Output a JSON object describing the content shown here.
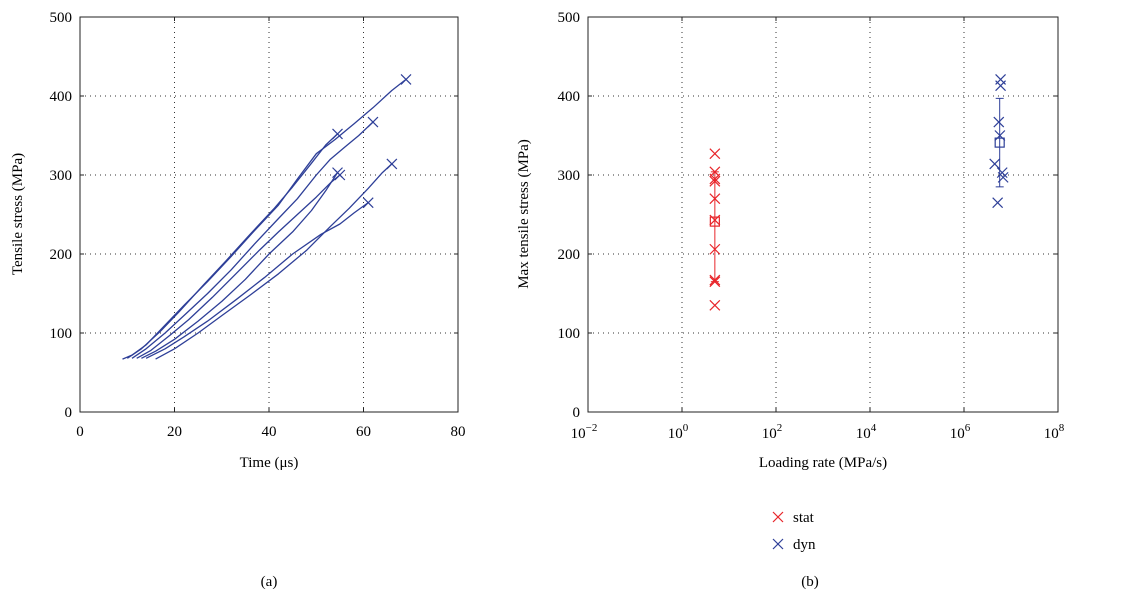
{
  "colors": {
    "stat": "#e8252a",
    "dyn": "#2e3f98",
    "axis": "#222222",
    "grid": "#333333"
  },
  "panels": [
    {
      "caption": "(a)",
      "chart_data": {
        "type": "line",
        "xlabel": "Time (μs)",
        "ylabel": "Tensile stress (MPa)",
        "xlim": [
          0,
          80
        ],
        "ylim": [
          0,
          500
        ],
        "xticks": [
          0,
          20,
          40,
          60,
          80
        ],
        "yticks": [
          0,
          100,
          200,
          300,
          400,
          500
        ],
        "grid": true,
        "series": [
          {
            "color": "dyn",
            "x": [
              9,
              11,
              14,
              18,
              22,
              27,
              32,
              37,
              42,
              46,
              50,
              54,
              58,
              62,
              66,
              69
            ],
            "y": [
              67,
              72,
              85,
              110,
              135,
              165,
              197,
              230,
              262,
              295,
              327,
              345,
              365,
              385,
              407,
              421
            ],
            "end_marker": [
              69,
              421
            ]
          },
          {
            "color": "dyn",
            "x": [
              10,
              13,
              17,
              21,
              26,
              31,
              36,
              41,
              45,
              49,
              52,
              54.5
            ],
            "y": [
              68,
              80,
              102,
              127,
              160,
              192,
              225,
              257,
              285,
              315,
              338,
              352
            ],
            "end_marker": [
              54.5,
              352
            ]
          },
          {
            "color": "dyn",
            "x": [
              11,
              14,
              18,
              22,
              27,
              32,
              37,
              42,
              46,
              50,
              53,
              56,
              59,
              62
            ],
            "y": [
              68,
              80,
              100,
              122,
              150,
              180,
              213,
              245,
              270,
              300,
              320,
              335,
              350,
              367
            ],
            "end_marker": [
              62,
              367
            ]
          },
          {
            "color": "dyn",
            "x": [
              12,
              15,
              19,
              23,
              28,
              33,
              38,
              42,
              46,
              50,
              53,
              55
            ],
            "y": [
              68,
              78,
              97,
              117,
              145,
              175,
              205,
              228,
              250,
              272,
              290,
              300
            ],
            "end_marker": [
              55,
              300
            ]
          },
          {
            "color": "dyn",
            "x": [
              13,
              16,
              20,
              25,
              30,
              35,
              40,
              45,
              49,
              52,
              54.5
            ],
            "y": [
              68,
              77,
              92,
              115,
              140,
              168,
              200,
              228,
              255,
              280,
              303
            ],
            "end_marker": [
              54.5,
              303
            ]
          },
          {
            "color": "dyn",
            "x": [
              14,
              18,
              22,
              27,
              33,
              39,
              45,
              51,
              55,
              58,
              61
            ],
            "y": [
              68,
              80,
              95,
              115,
              142,
              170,
              200,
              225,
              238,
              252,
              265
            ],
            "end_marker": [
              61,
              265
            ]
          },
          {
            "color": "dyn",
            "x": [
              16,
              20,
              25,
              30,
              36,
              42,
              48,
              53,
              57,
              61,
              64,
              66
            ],
            "y": [
              67,
              80,
              100,
              122,
              148,
              175,
              205,
              235,
              258,
              283,
              303,
              314
            ],
            "end_marker": [
              66,
              314
            ]
          }
        ]
      }
    },
    {
      "caption": "(b)",
      "chart_data": {
        "type": "scatter",
        "xlabel": "Loading rate (MPa/s)",
        "ylabel": "Max tensile stress (MPa)",
        "xscale": "log",
        "xlim": [
          0.01,
          100000000
        ],
        "ylim": [
          0,
          500
        ],
        "xtick_exponents": [
          -2,
          0,
          2,
          4,
          6,
          8
        ],
        "xtick_base": "10",
        "yticks": [
          0,
          100,
          200,
          300,
          400,
          500
        ],
        "grid": true,
        "legend": {
          "placement": "below",
          "entries": [
            {
              "label": "stat",
              "color": "stat"
            },
            {
              "label": "dyn",
              "color": "dyn"
            }
          ]
        },
        "series": [
          {
            "name": "stat",
            "color": "stat",
            "points": [
              [
                5,
                327
              ],
              [
                5,
                304
              ],
              [
                5,
                295
              ],
              [
                5,
                292
              ],
              [
                5,
                270
              ],
              [
                5,
                243
              ],
              [
                5,
                206
              ],
              [
                5,
                167
              ],
              [
                5,
                165
              ],
              [
                5,
                135
              ]
            ],
            "mean": 241,
            "errorbar": [
              165,
              304
            ]
          },
          {
            "name": "dyn",
            "color": "dyn",
            "points": [
              [
                6000000,
                421
              ],
              [
                6000000,
                413
              ],
              [
                5500000,
                367
              ],
              [
                5800000,
                350
              ],
              [
                4500000,
                314
              ],
              [
                6500000,
                303
              ],
              [
                6800000,
                297
              ],
              [
                5200000,
                265
              ]
            ],
            "mean": 341,
            "errorbar": [
              285,
              397
            ]
          }
        ]
      }
    }
  ]
}
